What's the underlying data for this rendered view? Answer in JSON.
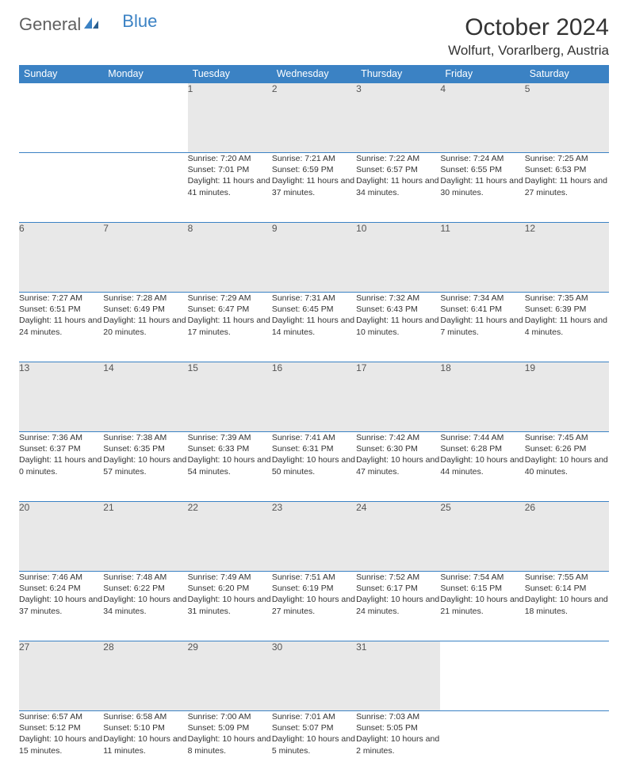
{
  "logo": {
    "text1": "General",
    "text2": "Blue"
  },
  "title": "October 2024",
  "location": "Wolfurt, Vorarlberg, Austria",
  "colors": {
    "header_bg": "#3b82c4",
    "header_text": "#ffffff",
    "daynum_bg": "#e8e8e8",
    "border": "#3b82c4",
    "body_text": "#333333"
  },
  "weekdays": [
    "Sunday",
    "Monday",
    "Tuesday",
    "Wednesday",
    "Thursday",
    "Friday",
    "Saturday"
  ],
  "weeks": [
    [
      null,
      null,
      {
        "n": "1",
        "sr": "Sunrise: 7:20 AM",
        "ss": "Sunset: 7:01 PM",
        "dl": "Daylight: 11 hours and 41 minutes."
      },
      {
        "n": "2",
        "sr": "Sunrise: 7:21 AM",
        "ss": "Sunset: 6:59 PM",
        "dl": "Daylight: 11 hours and 37 minutes."
      },
      {
        "n": "3",
        "sr": "Sunrise: 7:22 AM",
        "ss": "Sunset: 6:57 PM",
        "dl": "Daylight: 11 hours and 34 minutes."
      },
      {
        "n": "4",
        "sr": "Sunrise: 7:24 AM",
        "ss": "Sunset: 6:55 PM",
        "dl": "Daylight: 11 hours and 30 minutes."
      },
      {
        "n": "5",
        "sr": "Sunrise: 7:25 AM",
        "ss": "Sunset: 6:53 PM",
        "dl": "Daylight: 11 hours and 27 minutes."
      }
    ],
    [
      {
        "n": "6",
        "sr": "Sunrise: 7:27 AM",
        "ss": "Sunset: 6:51 PM",
        "dl": "Daylight: 11 hours and 24 minutes."
      },
      {
        "n": "7",
        "sr": "Sunrise: 7:28 AM",
        "ss": "Sunset: 6:49 PM",
        "dl": "Daylight: 11 hours and 20 minutes."
      },
      {
        "n": "8",
        "sr": "Sunrise: 7:29 AM",
        "ss": "Sunset: 6:47 PM",
        "dl": "Daylight: 11 hours and 17 minutes."
      },
      {
        "n": "9",
        "sr": "Sunrise: 7:31 AM",
        "ss": "Sunset: 6:45 PM",
        "dl": "Daylight: 11 hours and 14 minutes."
      },
      {
        "n": "10",
        "sr": "Sunrise: 7:32 AM",
        "ss": "Sunset: 6:43 PM",
        "dl": "Daylight: 11 hours and 10 minutes."
      },
      {
        "n": "11",
        "sr": "Sunrise: 7:34 AM",
        "ss": "Sunset: 6:41 PM",
        "dl": "Daylight: 11 hours and 7 minutes."
      },
      {
        "n": "12",
        "sr": "Sunrise: 7:35 AM",
        "ss": "Sunset: 6:39 PM",
        "dl": "Daylight: 11 hours and 4 minutes."
      }
    ],
    [
      {
        "n": "13",
        "sr": "Sunrise: 7:36 AM",
        "ss": "Sunset: 6:37 PM",
        "dl": "Daylight: 11 hours and 0 minutes."
      },
      {
        "n": "14",
        "sr": "Sunrise: 7:38 AM",
        "ss": "Sunset: 6:35 PM",
        "dl": "Daylight: 10 hours and 57 minutes."
      },
      {
        "n": "15",
        "sr": "Sunrise: 7:39 AM",
        "ss": "Sunset: 6:33 PM",
        "dl": "Daylight: 10 hours and 54 minutes."
      },
      {
        "n": "16",
        "sr": "Sunrise: 7:41 AM",
        "ss": "Sunset: 6:31 PM",
        "dl": "Daylight: 10 hours and 50 minutes."
      },
      {
        "n": "17",
        "sr": "Sunrise: 7:42 AM",
        "ss": "Sunset: 6:30 PM",
        "dl": "Daylight: 10 hours and 47 minutes."
      },
      {
        "n": "18",
        "sr": "Sunrise: 7:44 AM",
        "ss": "Sunset: 6:28 PM",
        "dl": "Daylight: 10 hours and 44 minutes."
      },
      {
        "n": "19",
        "sr": "Sunrise: 7:45 AM",
        "ss": "Sunset: 6:26 PM",
        "dl": "Daylight: 10 hours and 40 minutes."
      }
    ],
    [
      {
        "n": "20",
        "sr": "Sunrise: 7:46 AM",
        "ss": "Sunset: 6:24 PM",
        "dl": "Daylight: 10 hours and 37 minutes."
      },
      {
        "n": "21",
        "sr": "Sunrise: 7:48 AM",
        "ss": "Sunset: 6:22 PM",
        "dl": "Daylight: 10 hours and 34 minutes."
      },
      {
        "n": "22",
        "sr": "Sunrise: 7:49 AM",
        "ss": "Sunset: 6:20 PM",
        "dl": "Daylight: 10 hours and 31 minutes."
      },
      {
        "n": "23",
        "sr": "Sunrise: 7:51 AM",
        "ss": "Sunset: 6:19 PM",
        "dl": "Daylight: 10 hours and 27 minutes."
      },
      {
        "n": "24",
        "sr": "Sunrise: 7:52 AM",
        "ss": "Sunset: 6:17 PM",
        "dl": "Daylight: 10 hours and 24 minutes."
      },
      {
        "n": "25",
        "sr": "Sunrise: 7:54 AM",
        "ss": "Sunset: 6:15 PM",
        "dl": "Daylight: 10 hours and 21 minutes."
      },
      {
        "n": "26",
        "sr": "Sunrise: 7:55 AM",
        "ss": "Sunset: 6:14 PM",
        "dl": "Daylight: 10 hours and 18 minutes."
      }
    ],
    [
      {
        "n": "27",
        "sr": "Sunrise: 6:57 AM",
        "ss": "Sunset: 5:12 PM",
        "dl": "Daylight: 10 hours and 15 minutes."
      },
      {
        "n": "28",
        "sr": "Sunrise: 6:58 AM",
        "ss": "Sunset: 5:10 PM",
        "dl": "Daylight: 10 hours and 11 minutes."
      },
      {
        "n": "29",
        "sr": "Sunrise: 7:00 AM",
        "ss": "Sunset: 5:09 PM",
        "dl": "Daylight: 10 hours and 8 minutes."
      },
      {
        "n": "30",
        "sr": "Sunrise: 7:01 AM",
        "ss": "Sunset: 5:07 PM",
        "dl": "Daylight: 10 hours and 5 minutes."
      },
      {
        "n": "31",
        "sr": "Sunrise: 7:03 AM",
        "ss": "Sunset: 5:05 PM",
        "dl": "Daylight: 10 hours and 2 minutes."
      },
      null,
      null
    ]
  ]
}
